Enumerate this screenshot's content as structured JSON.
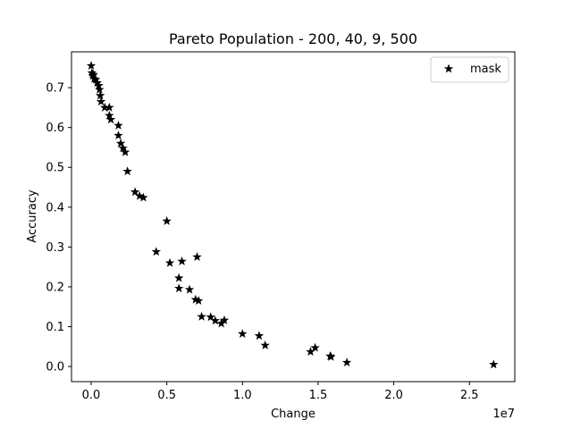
{
  "chart_data": {
    "type": "scatter",
    "title": "Pareto Population - 200, 40, 9, 500",
    "xlabel": "Change",
    "ylabel": "Accuracy",
    "x_offset_text": "1e7",
    "x_scale": 10000000,
    "xlim": [
      -1300000,
      28000000
    ],
    "ylim": [
      -0.038,
      0.79
    ],
    "x_ticks": [
      0,
      5000000,
      10000000,
      15000000,
      20000000,
      25000000
    ],
    "x_tick_labels": [
      "0.0",
      "0.5",
      "1.0",
      "1.5",
      "2.0",
      "2.5"
    ],
    "y_ticks": [
      0.0,
      0.1,
      0.2,
      0.3,
      0.4,
      0.5,
      0.6,
      0.7
    ],
    "y_tick_labels": [
      "0.0",
      "0.1",
      "0.2",
      "0.3",
      "0.4",
      "0.5",
      "0.6",
      "0.7"
    ],
    "grid": false,
    "legend": {
      "position": "top-right",
      "entries": [
        "mask"
      ]
    },
    "series": [
      {
        "name": "mask",
        "marker": "star",
        "color": "#000000",
        "points": [
          [
            0,
            0.755
          ],
          [
            50000,
            0.737
          ],
          [
            100000,
            0.73
          ],
          [
            150000,
            0.733
          ],
          [
            200000,
            0.722
          ],
          [
            300000,
            0.72
          ],
          [
            400000,
            0.712
          ],
          [
            500000,
            0.705
          ],
          [
            550000,
            0.695
          ],
          [
            600000,
            0.68
          ],
          [
            650000,
            0.665
          ],
          [
            900000,
            0.65
          ],
          [
            1200000,
            0.65
          ],
          [
            1200000,
            0.63
          ],
          [
            1300000,
            0.62
          ],
          [
            1800000,
            0.605
          ],
          [
            1800000,
            0.58
          ],
          [
            1950000,
            0.56
          ],
          [
            2100000,
            0.548
          ],
          [
            2250000,
            0.538
          ],
          [
            2400000,
            0.49
          ],
          [
            2900000,
            0.438
          ],
          [
            3200000,
            0.428
          ],
          [
            3450000,
            0.424
          ],
          [
            5000000,
            0.365
          ],
          [
            4300000,
            0.288
          ],
          [
            5200000,
            0.26
          ],
          [
            6000000,
            0.264
          ],
          [
            7000000,
            0.275
          ],
          [
            5800000,
            0.222
          ],
          [
            5800000,
            0.196
          ],
          [
            6500000,
            0.193
          ],
          [
            6900000,
            0.168
          ],
          [
            7100000,
            0.165
          ],
          [
            7300000,
            0.125
          ],
          [
            7900000,
            0.124
          ],
          [
            8200000,
            0.115
          ],
          [
            8600000,
            0.108
          ],
          [
            8800000,
            0.116
          ],
          [
            10000000,
            0.082
          ],
          [
            11100000,
            0.077
          ],
          [
            11500000,
            0.053
          ],
          [
            14500000,
            0.037
          ],
          [
            14800000,
            0.047
          ],
          [
            15800000,
            0.026
          ],
          [
            15850000,
            0.024
          ],
          [
            16900000,
            0.01
          ],
          [
            26600000,
            0.005
          ]
        ]
      }
    ]
  }
}
